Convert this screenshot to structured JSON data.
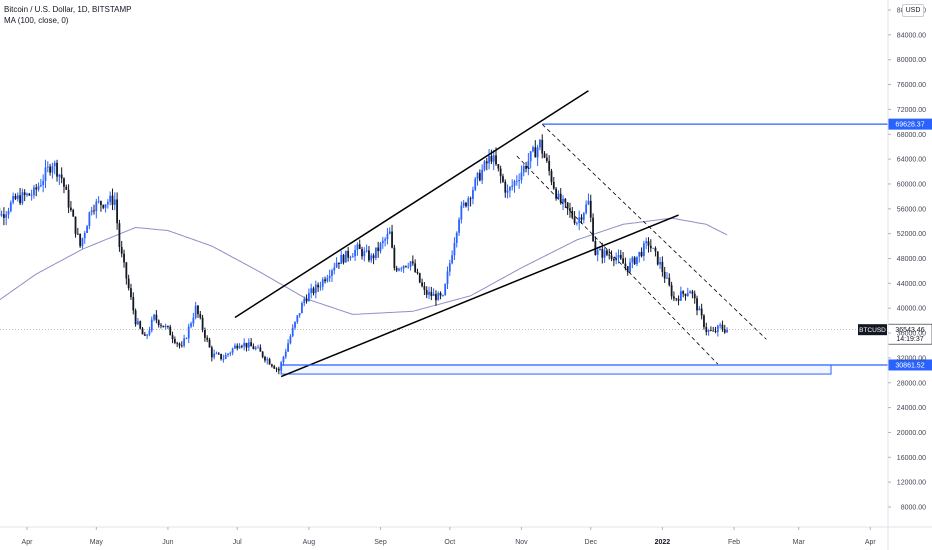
{
  "legend": {
    "title": "Bitcoin / U.S. Dollar, 1D, BITSTAMP",
    "indicator": "MA (100, close, 0)"
  },
  "currency_button": "USD",
  "colors": {
    "up_candle": "#2962ff",
    "down_candle": "#131722",
    "ma_line": "#8f8fc9",
    "level_line": "#2962ff",
    "trend_line": "#000000",
    "price_label_bg": "#131722"
  },
  "chart_data": {
    "type": "candlestick",
    "y_ticks": [
      "8000.00",
      "12000.00",
      "16000.00",
      "20000.00",
      "24000.00",
      "28000.00",
      "32000.00",
      "36000.00",
      "40000.00",
      "44000.00",
      "48000.00",
      "52000.00",
      "56000.00",
      "60000.00",
      "64000.00",
      "68000.00",
      "72000.00",
      "76000.00",
      "80000.00",
      "84000.00",
      "88000.00"
    ],
    "ylim": [
      4000,
      89000
    ],
    "x_ticks": [
      {
        "label": "Apr",
        "date": "2021-04-01",
        "bold": false
      },
      {
        "label": "May",
        "date": "2021-05-01",
        "bold": false
      },
      {
        "label": "Jun",
        "date": "2021-06-01",
        "bold": false
      },
      {
        "label": "Jul",
        "date": "2021-07-01",
        "bold": false
      },
      {
        "label": "Aug",
        "date": "2021-08-01",
        "bold": false
      },
      {
        "label": "Sep",
        "date": "2021-09-01",
        "bold": false
      },
      {
        "label": "Oct",
        "date": "2021-10-01",
        "bold": false
      },
      {
        "label": "Nov",
        "date": "2021-11-01",
        "bold": false
      },
      {
        "label": "Dec",
        "date": "2021-12-01",
        "bold": false
      },
      {
        "label": "2022",
        "date": "2022-01-01",
        "bold": true
      },
      {
        "label": "Feb",
        "date": "2022-02-01",
        "bold": false
      },
      {
        "label": "Mar",
        "date": "2022-03-01",
        "bold": false
      },
      {
        "label": "Apr",
        "date": "2022-04-01",
        "bold": false
      }
    ],
    "price_keypoints": [
      [
        "2021-03-15",
        58000
      ],
      [
        "2021-03-22",
        55000
      ],
      [
        "2021-03-28",
        57500
      ],
      [
        "2021-04-05",
        58500
      ],
      [
        "2021-04-13",
        63500
      ],
      [
        "2021-04-17",
        61000
      ],
      [
        "2021-04-25",
        50000
      ],
      [
        "2021-04-30",
        56500
      ],
      [
        "2021-05-10",
        57500
      ],
      [
        "2021-05-12",
        50000
      ],
      [
        "2021-05-19",
        38000
      ],
      [
        "2021-05-23",
        35000
      ],
      [
        "2021-05-27",
        38500
      ],
      [
        "2021-06-02",
        36500
      ],
      [
        "2021-06-08",
        33500
      ],
      [
        "2021-06-14",
        40000
      ],
      [
        "2021-06-21",
        32500
      ],
      [
        "2021-06-26",
        32000
      ],
      [
        "2021-07-03",
        34500
      ],
      [
        "2021-07-10",
        33500
      ],
      [
        "2021-07-20",
        30000
      ],
      [
        "2021-07-25",
        35500
      ],
      [
        "2021-07-31",
        41500
      ],
      [
        "2021-08-06",
        43500
      ],
      [
        "2021-08-14",
        47500
      ],
      [
        "2021-08-23",
        49500
      ],
      [
        "2021-08-29",
        48000
      ],
      [
        "2021-09-06",
        52000
      ],
      [
        "2021-09-08",
        46500
      ],
      [
        "2021-09-15",
        47500
      ],
      [
        "2021-09-21",
        42500
      ],
      [
        "2021-09-29",
        41500
      ],
      [
        "2021-10-06",
        55000
      ],
      [
        "2021-10-15",
        61500
      ],
      [
        "2021-10-20",
        64500
      ],
      [
        "2021-10-27",
        58500
      ],
      [
        "2021-11-01",
        61500
      ],
      [
        "2021-11-10",
        66500
      ],
      [
        "2021-11-18",
        57500
      ],
      [
        "2021-11-26",
        54000
      ],
      [
        "2021-12-01",
        57000
      ],
      [
        "2021-12-04",
        49000
      ],
      [
        "2021-12-12",
        48500
      ],
      [
        "2021-12-18",
        46500
      ],
      [
        "2021-12-27",
        50500
      ],
      [
        "2022-01-01",
        47000
      ],
      [
        "2022-01-07",
        41500
      ],
      [
        "2022-01-14",
        43000
      ],
      [
        "2022-01-21",
        36500
      ],
      [
        "2022-01-24",
        36000
      ],
      [
        "2022-01-27",
        37000
      ],
      [
        "2022-01-29",
        36543.46
      ]
    ],
    "ma_keypoints": [
      [
        "2021-03-15",
        40000
      ],
      [
        "2021-04-05",
        45500
      ],
      [
        "2021-04-25",
        49500
      ],
      [
        "2021-05-18",
        53000
      ],
      [
        "2021-06-01",
        52500
      ],
      [
        "2021-06-20",
        50000
      ],
      [
        "2021-07-10",
        46000
      ],
      [
        "2021-07-31",
        41500
      ],
      [
        "2021-08-20",
        39000
      ],
      [
        "2021-09-15",
        39500
      ],
      [
        "2021-10-10",
        42000
      ],
      [
        "2021-11-01",
        46500
      ],
      [
        "2021-11-25",
        51000
      ],
      [
        "2021-12-15",
        53500
      ],
      [
        "2022-01-05",
        54500
      ],
      [
        "2022-01-20",
        53500
      ],
      [
        "2022-01-29",
        51800
      ]
    ],
    "levels": [
      {
        "price": 69628.37,
        "label": "69628.37",
        "start": "2021-11-10"
      },
      {
        "price": 30861.52,
        "label": "30861.52",
        "start": "2021-07-20"
      }
    ],
    "current_price": {
      "symbol": "BTCUSD",
      "price": 36543.46,
      "label": "36543.46",
      "countdown": "14:19:37"
    },
    "support_zone": {
      "start": "2021-07-20",
      "end": "2022-03-15",
      "top": 30861.52,
      "bottom": 29400
    },
    "lines": [
      {
        "style": "solid",
        "from": [
          "2021-06-30",
          38500
        ],
        "to": [
          "2021-11-30",
          75000
        ]
      },
      {
        "style": "solid",
        "from": [
          "2021-07-20",
          29000
        ],
        "to": [
          "2022-01-08",
          55000
        ]
      },
      {
        "style": "dashed",
        "from": [
          "2021-11-10",
          69600
        ],
        "to": [
          "2022-02-15",
          35000
        ]
      },
      {
        "style": "dashed",
        "from": [
          "2021-10-30",
          64500
        ],
        "to": [
          "2022-01-25",
          31000
        ]
      }
    ]
  }
}
